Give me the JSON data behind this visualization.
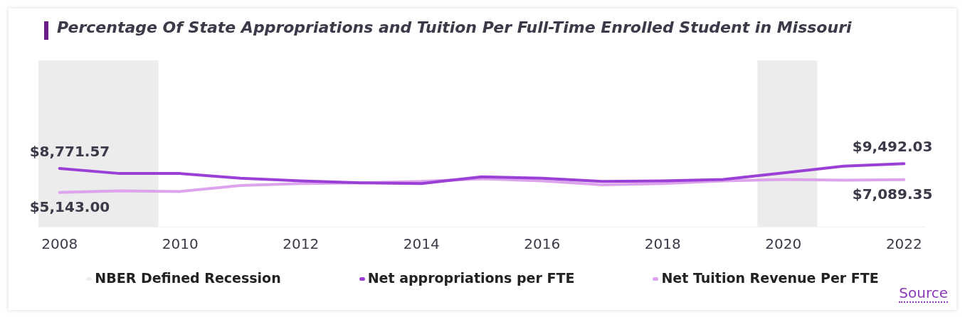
{
  "chart_data": {
    "type": "line",
    "title": "Percentage Of State Appropriations and Tuition Per Full-Time Enrolled Student in Missouri",
    "x": [
      2008,
      2009,
      2010,
      2011,
      2012,
      2013,
      2014,
      2015,
      2016,
      2017,
      2018,
      2019,
      2020,
      2021,
      2022
    ],
    "series": [
      {
        "name": "Net appropriations per FTE",
        "color": "#9b40d6",
        "values": [
          8771.57,
          8000,
          8000,
          7300,
          6900,
          6600,
          6500,
          7500,
          7300,
          6800,
          6900,
          7100,
          8100,
          9100,
          9492.03
        ],
        "value_labels": [
          "$8,771.57",
          null,
          null,
          null,
          null,
          null,
          null,
          null,
          null,
          null,
          null,
          null,
          null,
          null,
          "$9,492.03"
        ]
      },
      {
        "name": "Net Tuition Revenue Per FTE",
        "color": "#dda3ec",
        "values": [
          5143.0,
          5400,
          5300,
          6200,
          6500,
          6600,
          6800,
          7200,
          6900,
          6300,
          6500,
          6900,
          7100,
          7000,
          7089.35
        ],
        "value_labels": [
          "$5,143.00",
          null,
          null,
          null,
          null,
          null,
          null,
          null,
          null,
          null,
          null,
          null,
          null,
          null,
          "$7,089.35"
        ]
      }
    ],
    "xlim": [
      2007.65,
      2022.35
    ],
    "xticks": [
      2008,
      2010,
      2012,
      2014,
      2016,
      2018,
      2020,
      2022
    ],
    "tick_labels": "x",
    "bands": [
      {
        "axis": "x",
        "from": 2007.65,
        "to": 2009.64,
        "label": "NBER Defined Recession",
        "color": "#ececec"
      },
      {
        "axis": "x",
        "from": 2019.57,
        "to": 2020.56,
        "color": "#ececec"
      }
    ],
    "grid": false,
    "legend": "bottom",
    "marker": "none",
    "line_style": "solid",
    "annotations": [
      "Source"
    ]
  }
}
